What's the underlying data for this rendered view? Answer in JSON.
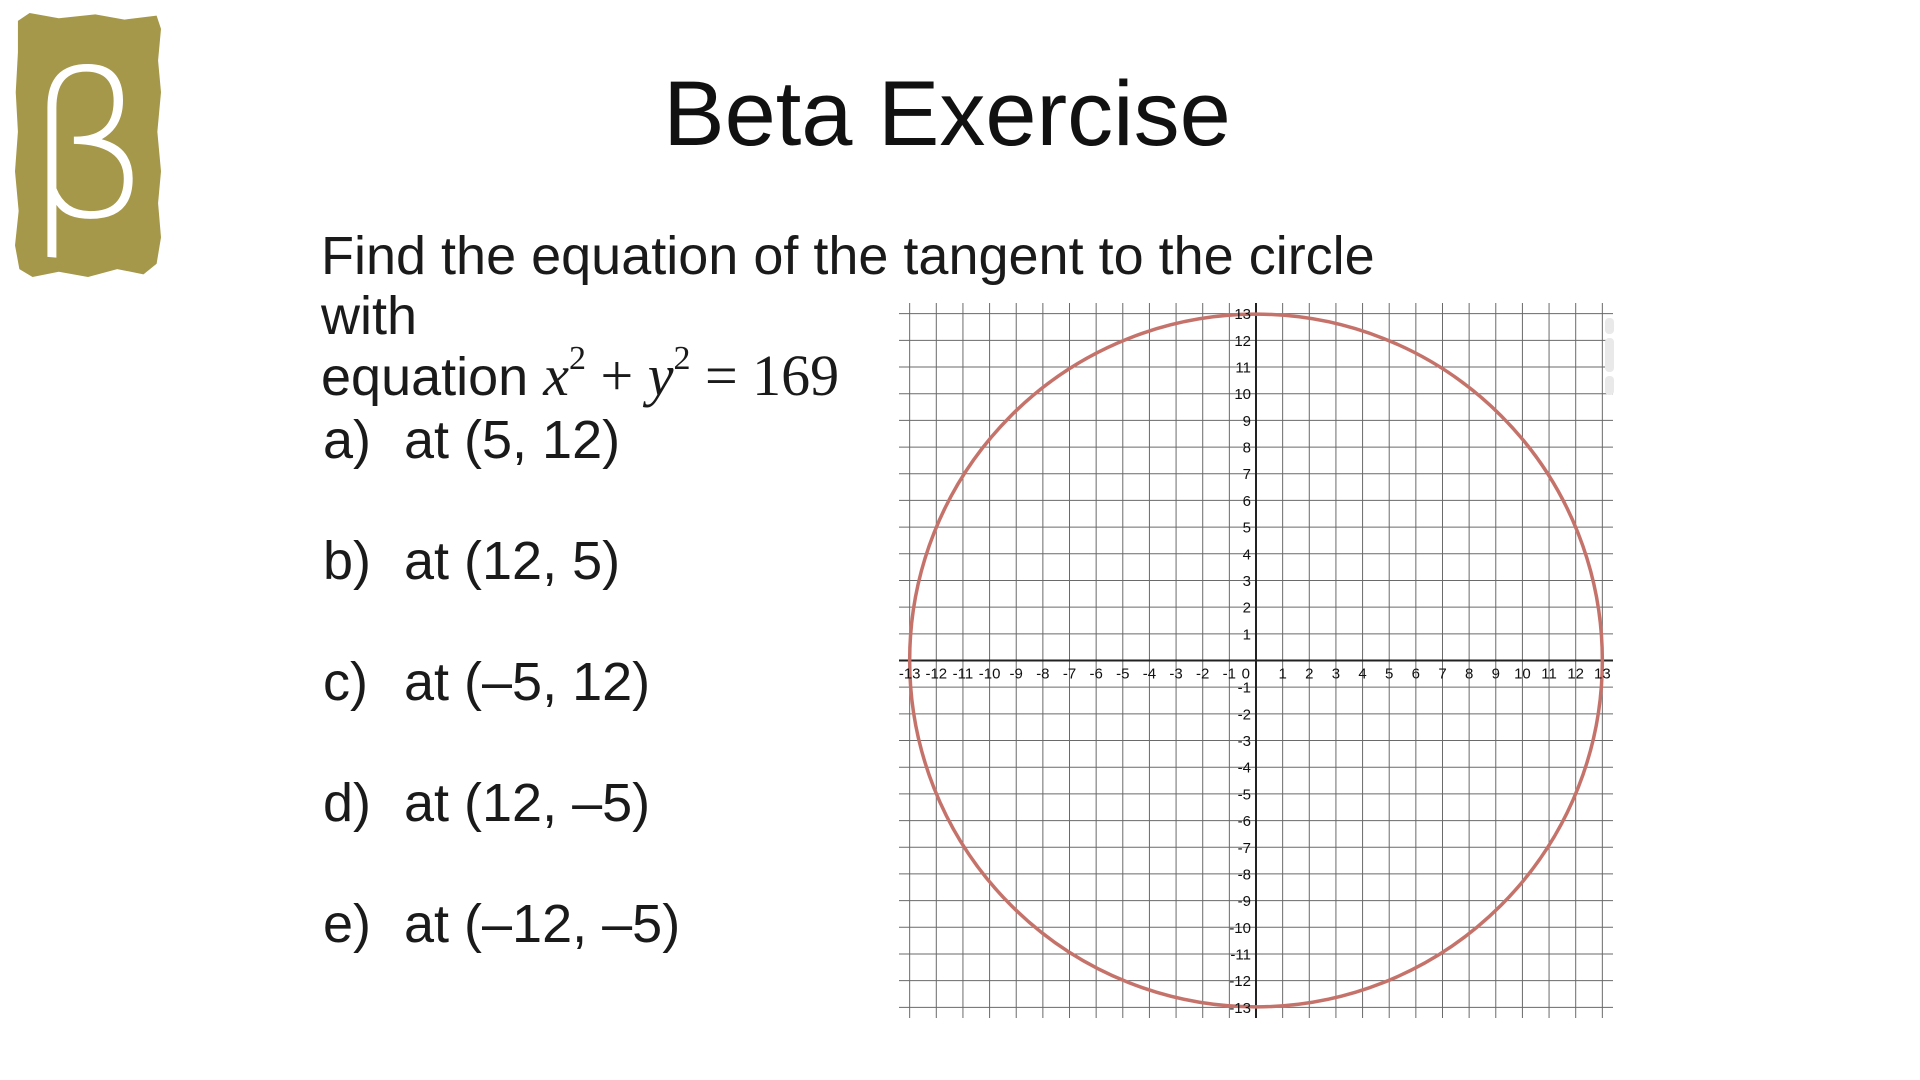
{
  "logo": {
    "symbol": "β",
    "bg_color": "#a6984a",
    "symbol_color": "#ffffff"
  },
  "header": {
    "title": "Beta Exercise"
  },
  "problem": {
    "line1": "Find the equation of the tangent to the circle with",
    "line2_prefix": "equation",
    "equation": {
      "var1": "x",
      "sup1": "2",
      "op": "+",
      "var2": "y",
      "sup2": "2",
      "rhs": "= 169"
    }
  },
  "questions": [
    {
      "label": "a)",
      "text": "at (5, 12)"
    },
    {
      "label": "b)",
      "text": "at (12, 5)"
    },
    {
      "label": "c)",
      "text": "at (–5, 12)"
    },
    {
      "label": "d)",
      "text": "at (12, –5)"
    },
    {
      "label": "e)",
      "text": "at (–12, –5)"
    }
  ],
  "chart_data": {
    "type": "line",
    "subtype": "circle-plot",
    "title": "",
    "equation": "x² + y² = 169",
    "circle": {
      "center_x": 0,
      "center_y": 0,
      "radius": 13
    },
    "x_range": [
      -13.4,
      13.4
    ],
    "y_range": [
      -13.4,
      13.4
    ],
    "x_ticks": [
      -13,
      -12,
      -11,
      -10,
      -9,
      -8,
      -7,
      -6,
      -5,
      -4,
      -3,
      -2,
      -1,
      0,
      1,
      2,
      3,
      4,
      5,
      6,
      7,
      8,
      9,
      10,
      11,
      12,
      13
    ],
    "y_ticks": [
      13,
      12,
      11,
      10,
      9,
      8,
      7,
      6,
      5,
      4,
      3,
      2,
      1,
      -1,
      -2,
      -3,
      -4,
      -5,
      -6,
      -7,
      -8,
      -9,
      -10,
      -11,
      -12,
      -13
    ],
    "grid": true,
    "legend": false,
    "colors": {
      "circle_stroke": "#c5736a",
      "grid_line": "#6a6a6a",
      "axis_line": "#222222",
      "tick_label": "#111111",
      "scrollbar_artifact": "#e9e9e9",
      "background": "#ffffff"
    },
    "circle_stroke_width": 3.5,
    "tick_font_size": 15
  }
}
